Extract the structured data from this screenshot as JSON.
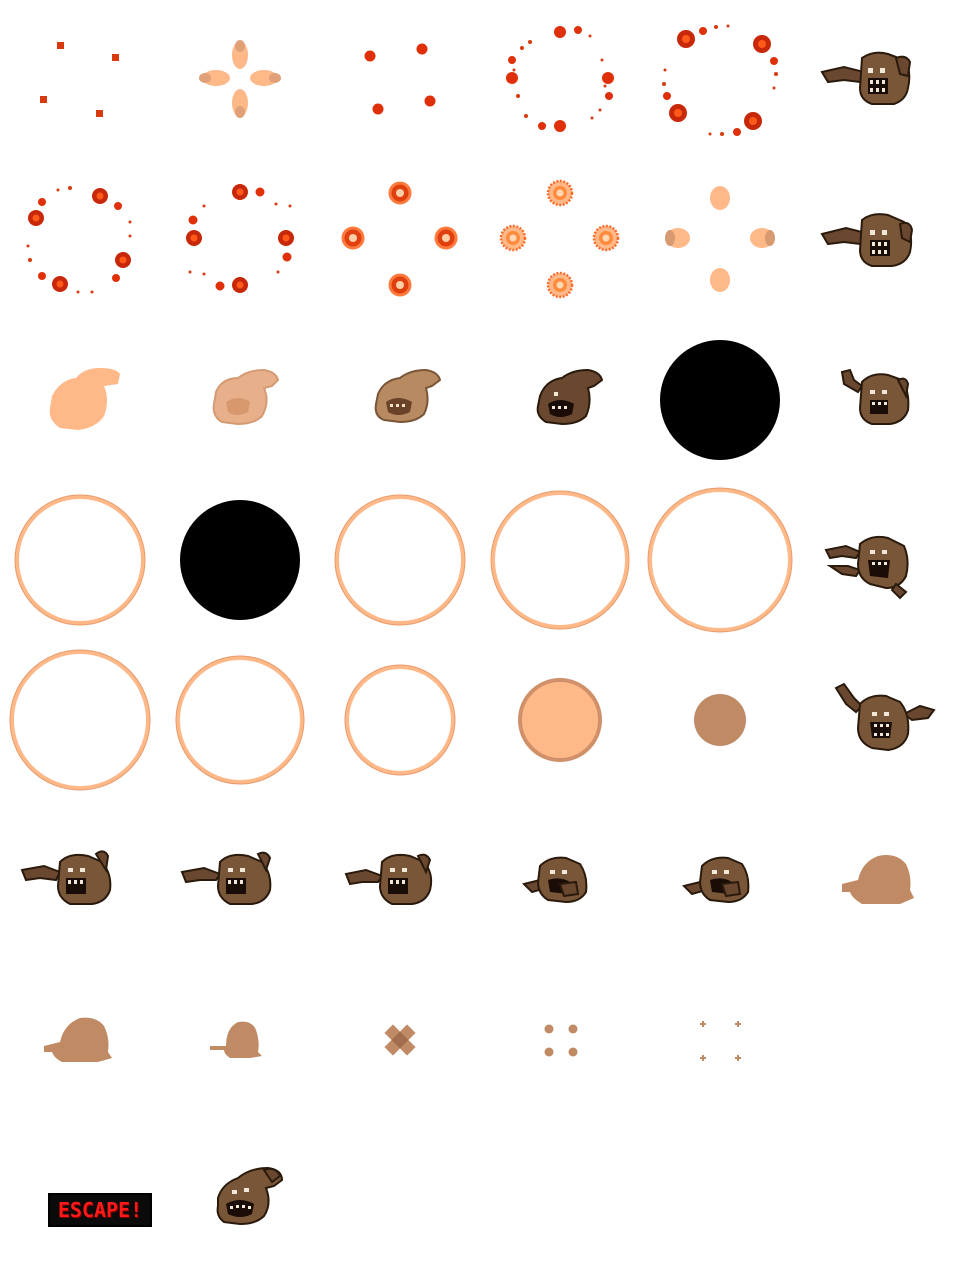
{
  "sheet": {
    "background": "#ffffff",
    "columns": 6,
    "rows": 8,
    "palette": {
      "red_dark": "#c83200",
      "red_bright": "#ff3c14",
      "orange_ring": "#ff8c3c",
      "peach": "#ffb888",
      "peach_mid": "#e8a47c",
      "tan": "#c08a64",
      "brown": "#7a5638",
      "brown_dark": "#3a2414",
      "black": "#000000",
      "escape_red": "#ff1a1a"
    },
    "escape_label": "ESCAPE!"
  }
}
